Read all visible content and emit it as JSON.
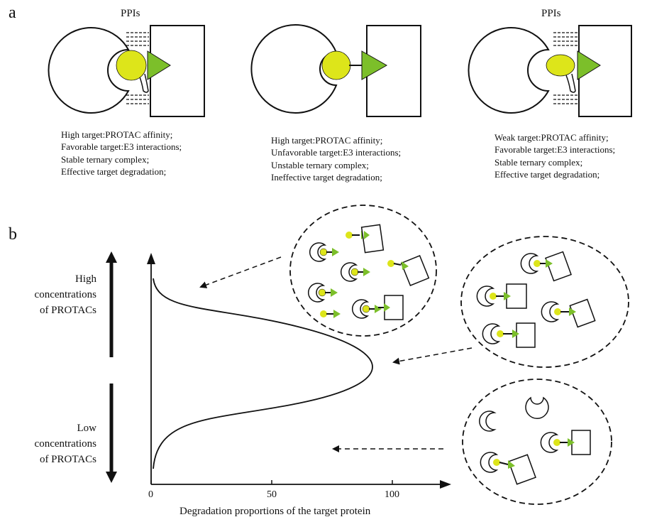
{
  "panel_a": {
    "letter": "a",
    "complexes": [
      {
        "ppi_label": "PPIs",
        "description": [
          "High target:PROTAC affinity;",
          "Favorable target:E3 interactions;",
          "Stable ternary complex;",
          "Effective target degradation;"
        ]
      },
      {
        "ppi_label": "",
        "description": [
          "High target:PROTAC affinity;",
          "Unfavorable target:E3 interactions;",
          "Unstable ternary complex;",
          "Ineffective target degradation;"
        ]
      },
      {
        "ppi_label": "PPIs",
        "description": [
          "Weak target:PROTAC affinity;",
          "Favorable target:E3 interactions;",
          "Stable ternary complex;",
          "Effective target degradation;"
        ]
      }
    ]
  },
  "panel_b": {
    "letter": "b",
    "high_label": [
      "High",
      "concentrations",
      "of PROTACs"
    ],
    "low_label": [
      "Low",
      "concentrations",
      "of PROTACs"
    ],
    "x_ticks": [
      "0",
      "50",
      "100"
    ],
    "x_axis_title": "Degradation proportions of the target protein"
  },
  "colors": {
    "ligand_yellow": "#dde51a",
    "warhead_green": "#7cbf2a",
    "line": "#111111"
  }
}
